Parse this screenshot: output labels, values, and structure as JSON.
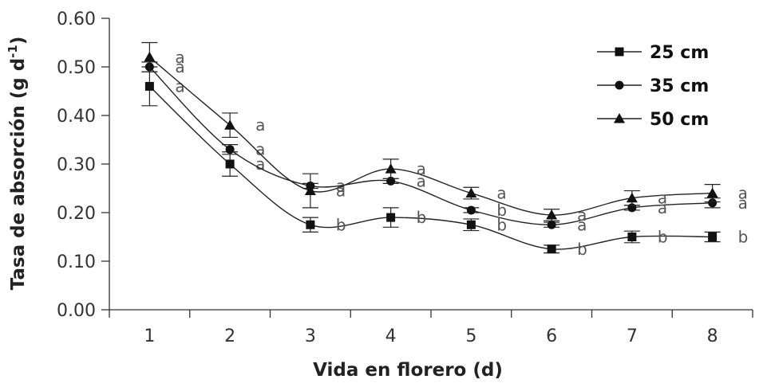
{
  "chart_data": {
    "type": "line",
    "xlabel": "Vida en florero (d)",
    "ylabel_main": "Tasa de absorción (g d",
    "ylabel_sup": "-1",
    "ylabel_close": ")",
    "x": [
      1,
      2,
      3,
      4,
      5,
      6,
      7,
      8
    ],
    "x_tick_labels": [
      "1",
      "2",
      "3",
      "4",
      "5",
      "6",
      "7",
      "8"
    ],
    "y_tick_labels": [
      "0.00",
      "0.10",
      "0.20",
      "0.30",
      "0.40",
      "0.50",
      "0.60"
    ],
    "ylim": [
      0,
      0.6
    ],
    "xlim": [
      0.5,
      8.5
    ],
    "grid": false,
    "legend_position": "top-right",
    "series": [
      {
        "name": "25 cm",
        "marker": "square",
        "values": [
          0.46,
          0.3,
          0.175,
          0.19,
          0.175,
          0.125,
          0.15,
          0.15
        ],
        "errors": [
          0.04,
          0.025,
          0.015,
          0.02,
          0.012,
          0.008,
          0.012,
          0.01
        ],
        "letters": [
          "a",
          "a",
          "b",
          "b",
          "b",
          "b",
          "b",
          "b"
        ]
      },
      {
        "name": "35 cm",
        "marker": "circle",
        "values": [
          0.5,
          0.33,
          0.255,
          0.265,
          0.205,
          0.175,
          0.21,
          0.22
        ],
        "errors": [
          0.01,
          0.01,
          0.005,
          0.005,
          0.005,
          0.005,
          0.005,
          0.01
        ],
        "letters": [
          "a",
          "a",
          "a",
          "a",
          "b",
          "a",
          "a",
          "a"
        ]
      },
      {
        "name": "50 cm",
        "marker": "triangle",
        "values": [
          0.52,
          0.38,
          0.245,
          0.29,
          0.24,
          0.195,
          0.23,
          0.24
        ],
        "errors": [
          0.03,
          0.025,
          0.035,
          0.02,
          0.012,
          0.012,
          0.015,
          0.018
        ],
        "letters": [
          "a",
          "a",
          "a",
          "a",
          "a",
          "a",
          "a",
          "a"
        ]
      }
    ]
  }
}
